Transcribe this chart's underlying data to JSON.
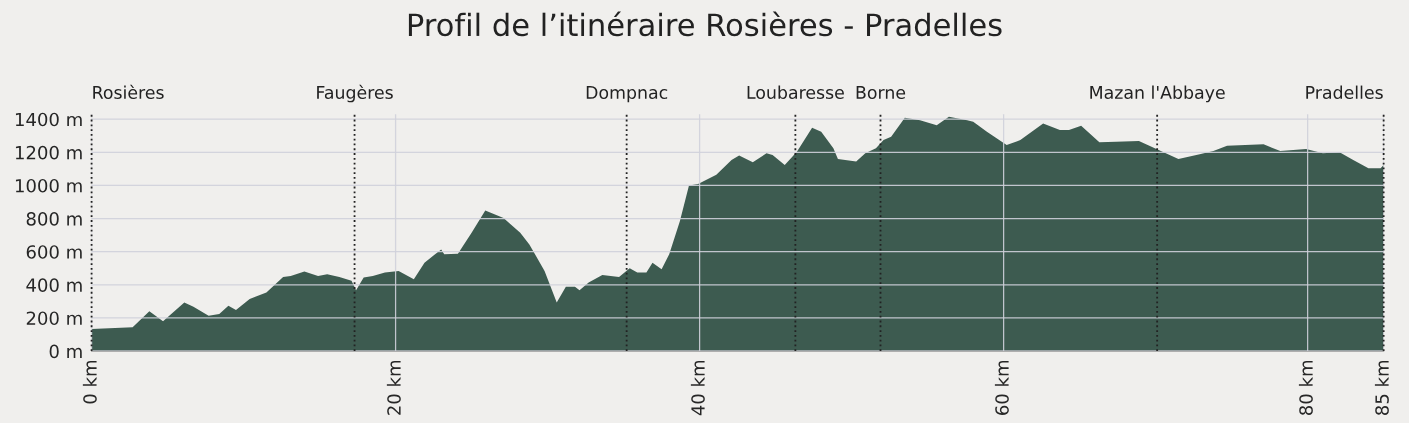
{
  "chart_data": {
    "type": "area",
    "title": "Profil de l’itinéraire Rosières - Pradelles",
    "x": [
      0,
      2.7,
      3.8,
      4.5,
      4.7,
      6.1,
      6.7,
      7.7,
      8.4,
      9.0,
      9.5,
      10.4,
      11.5,
      12.6,
      13.1,
      14.0,
      14.9,
      15.5,
      16.3,
      17.1,
      17.4,
      17.9,
      18.5,
      19.3,
      20.2,
      21.2,
      21.9,
      23.0,
      23.2,
      24.1,
      25.0,
      25.9,
      27.1,
      28.2,
      28.8,
      29.8,
      30.6,
      31.2,
      31.8,
      32.1,
      32.7,
      33.6,
      34.7,
      35.4,
      35.9,
      36.5,
      36.9,
      37.5,
      38.0,
      38.7,
      39.3,
      39.9,
      41.1,
      42.1,
      42.6,
      43.5,
      44.4,
      44.8,
      45.6,
      46.4,
      47.4,
      48.0,
      48.8,
      49.1,
      50.3,
      50.9,
      51.6,
      52.1,
      52.6,
      53.5,
      54.5,
      55.6,
      56.4,
      57.6,
      58.0,
      58.9,
      60.2,
      61.1,
      62.6,
      63.7,
      64.3,
      65.1,
      66.3,
      67.4,
      68.9,
      70.2,
      71.5,
      72.9,
      73.8,
      74.7,
      77.1,
      78.2,
      79.9,
      81.0,
      82.1,
      83.0,
      84.0,
      84.8,
      85.0
    ],
    "series": [
      {
        "color": "#3d5b50",
        "values": [
          134,
          144,
          240,
          194,
          180,
          294,
          268,
          214,
          224,
          274,
          248,
          314,
          354,
          448,
          454,
          480,
          454,
          464,
          448,
          424,
          368,
          444,
          454,
          474,
          484,
          434,
          534,
          614,
          584,
          588,
          714,
          848,
          804,
          714,
          644,
          484,
          294,
          388,
          388,
          368,
          414,
          460,
          448,
          500,
          474,
          474,
          534,
          494,
          584,
          784,
          1000,
          1008,
          1064,
          1154,
          1180,
          1140,
          1194,
          1184,
          1124,
          1204,
          1348,
          1324,
          1224,
          1160,
          1144,
          1194,
          1224,
          1274,
          1294,
          1408,
          1394,
          1364,
          1414,
          1394,
          1384,
          1324,
          1244,
          1274,
          1374,
          1334,
          1334,
          1360,
          1260,
          1264,
          1268,
          1214,
          1160,
          1188,
          1208,
          1240,
          1248,
          1208,
          1220,
          1194,
          1200,
          1154,
          1104,
          1104,
          1124
        ]
      }
    ],
    "xlim": [
      0,
      85
    ],
    "ylim": [
      0,
      1430
    ],
    "xticks": [
      {
        "value": 0,
        "label": "0 km"
      },
      {
        "value": 20,
        "label": "20 km"
      },
      {
        "value": 40,
        "label": "40 km"
      },
      {
        "value": 60,
        "label": "60 km"
      },
      {
        "value": 80,
        "label": "80 km"
      },
      {
        "value": 85,
        "label": "85 km"
      }
    ],
    "yticks": [
      {
        "value": 0,
        "label": "0 m"
      },
      {
        "value": 200,
        "label": "200 m"
      },
      {
        "value": 400,
        "label": "400 m"
      },
      {
        "value": 600,
        "label": "600 m"
      },
      {
        "value": 800,
        "label": "800 m"
      },
      {
        "value": 1000,
        "label": "1000 m"
      },
      {
        "value": 1200,
        "label": "1200 m"
      },
      {
        "value": 1400,
        "label": "1400 m"
      }
    ],
    "grid": true,
    "ref_lines": [
      {
        "axis": "x",
        "value": 0,
        "label": "Rosières",
        "color": "#222222",
        "line_style": "dotted"
      },
      {
        "axis": "x",
        "value": 17.3,
        "label": "Faugères",
        "color": "#222222",
        "line_style": "dotted"
      },
      {
        "axis": "x",
        "value": 35.2,
        "label": "Dompnac",
        "color": "#222222",
        "line_style": "dotted"
      },
      {
        "axis": "x",
        "value": 46.3,
        "label": "Loubaresse",
        "color": "#222222",
        "line_style": "dotted"
      },
      {
        "axis": "x",
        "value": 51.9,
        "label": "Borne",
        "color": "#222222",
        "line_style": "dotted"
      },
      {
        "axis": "x",
        "value": 70.1,
        "label": "Mazan l'Abbaye",
        "color": "#222222",
        "line_style": "dotted"
      },
      {
        "axis": "x",
        "value": 85,
        "label": "Pradelles",
        "color": "#222222",
        "line_style": "dotted"
      }
    ]
  }
}
